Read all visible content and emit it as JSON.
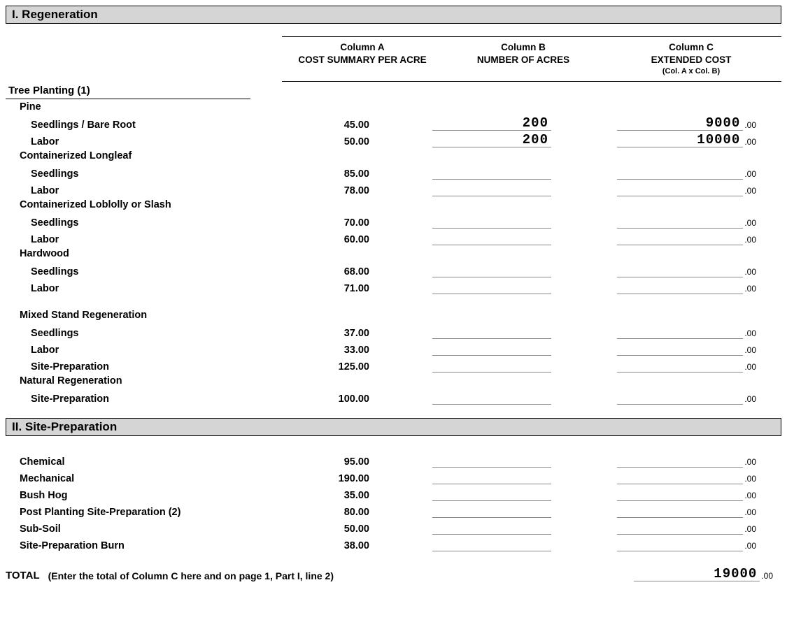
{
  "sections": {
    "regen": {
      "title": "I. Regeneration",
      "columns": {
        "a": {
          "line1": "Column A",
          "line2": "COST SUMMARY PER ACRE"
        },
        "b": {
          "line1": "Column B",
          "line2": "NUMBER OF ACRES"
        },
        "c": {
          "line1": "Column C",
          "line2": "EXTENDED COST",
          "sub": "(Col. A x Col. B)"
        }
      },
      "group_title": "Tree Planting (1)",
      "categories": {
        "pine": {
          "label": "Pine",
          "seedlings": {
            "label": "Seedlings / Bare Root",
            "a": "45.00",
            "b": "200",
            "c": "9000"
          },
          "labor": {
            "label": "Labor",
            "a": "50.00",
            "b": "200",
            "c": "10000"
          }
        },
        "longleaf": {
          "label": "Containerized Longleaf",
          "seedlings": {
            "label": "Seedlings",
            "a": "85.00",
            "b": "",
            "c": ""
          },
          "labor": {
            "label": "Labor",
            "a": "78.00",
            "b": "",
            "c": ""
          }
        },
        "loblolly": {
          "label": "Containerized Loblolly or Slash",
          "seedlings": {
            "label": "Seedlings",
            "a": "70.00",
            "b": "",
            "c": ""
          },
          "labor": {
            "label": "Labor",
            "a": "60.00",
            "b": "",
            "c": ""
          }
        },
        "hardwood": {
          "label": "Hardwood",
          "seedlings": {
            "label": "Seedlings",
            "a": "68.00",
            "b": "",
            "c": ""
          },
          "labor": {
            "label": "Labor",
            "a": "71.00",
            "b": "",
            "c": ""
          }
        },
        "mixed": {
          "label": "Mixed Stand Regeneration",
          "seedlings": {
            "label": "Seedlings",
            "a": "37.00",
            "b": "",
            "c": ""
          },
          "labor": {
            "label": "Labor",
            "a": "33.00",
            "b": "",
            "c": ""
          },
          "siteprep": {
            "label": "Site-Preparation",
            "a": "125.00",
            "b": "",
            "c": ""
          }
        },
        "natural": {
          "label": "Natural Regeneration",
          "siteprep": {
            "label": "Site-Preparation",
            "a": "100.00",
            "b": "",
            "c": ""
          }
        }
      }
    },
    "siteprep": {
      "title": "II. Site-Preparation",
      "rows": {
        "chemical": {
          "label": "Chemical",
          "a": "95.00",
          "b": "",
          "c": ""
        },
        "mechanical": {
          "label": "Mechanical",
          "a": "190.00",
          "b": "",
          "c": ""
        },
        "bushhog": {
          "label": "Bush Hog",
          "a": "35.00",
          "b": "",
          "c": ""
        },
        "post": {
          "label": "Post Planting Site-Preparation (2)",
          "a": "80.00",
          "b": "",
          "c": ""
        },
        "subsoil": {
          "label": "Sub-Soil",
          "a": "50.00",
          "b": "",
          "c": ""
        },
        "burn": {
          "label": "Site-Preparation Burn",
          "a": "38.00",
          "b": "",
          "c": ""
        }
      }
    }
  },
  "total": {
    "label": "TOTAL",
    "desc": "(Enter the total of Column C here and on page 1, Part I, line 2)",
    "value": "19000"
  },
  "cents": ".00"
}
